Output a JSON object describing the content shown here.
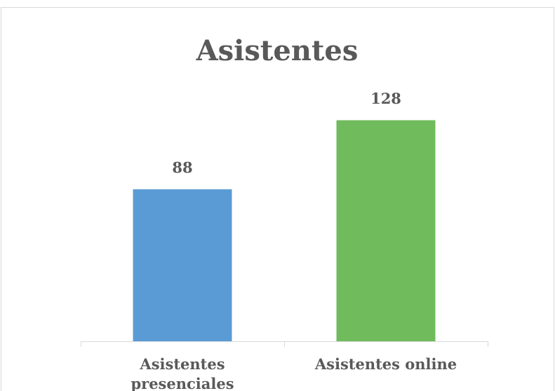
{
  "chart_data": {
    "type": "bar",
    "title": "Asistentes",
    "categories": [
      "Asistentes presenciales",
      "Asistentes online"
    ],
    "values": [
      88,
      128
    ],
    "colors": [
      "#5b9bd5",
      "#70bb5c"
    ],
    "ylim": [
      0,
      140
    ],
    "data_labels": true
  }
}
